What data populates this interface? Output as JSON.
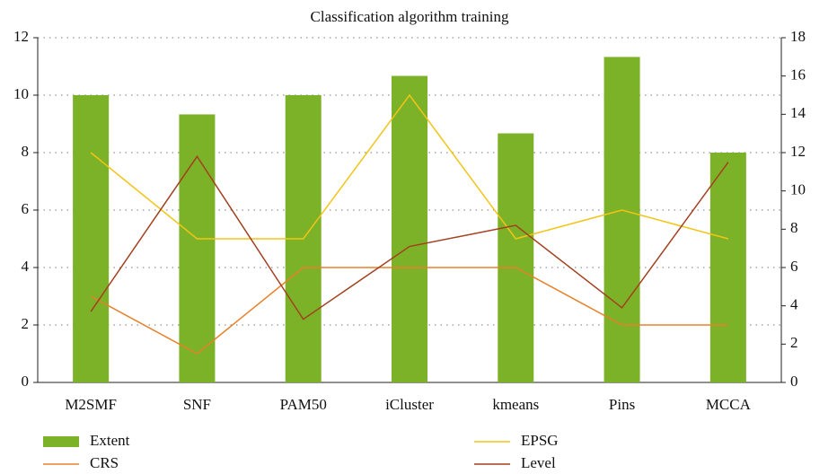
{
  "chart_data": {
    "type": "bar",
    "title": "Classification algorithm training",
    "categories": [
      "M2SMF",
      "SNF",
      "PAM50",
      "iCluster",
      "kmeans",
      "Pins",
      "MCCA"
    ],
    "series": [
      {
        "name": "Extent",
        "type": "bar",
        "color": "#7cb227",
        "values": [
          10,
          9.33,
          10,
          10.67,
          8.67,
          11.33,
          8
        ]
      },
      {
        "name": "CRS",
        "type": "line",
        "color": "#e8802a",
        "values": [
          3,
          1,
          4,
          4,
          4,
          2,
          2
        ]
      },
      {
        "name": "EPSG",
        "type": "line",
        "color": "#f3c417",
        "values": [
          8,
          5,
          5,
          10,
          5,
          6,
          5
        ]
      },
      {
        "name": "Level",
        "type": "line",
        "color": "#a3401f",
        "axis": "y2",
        "values": [
          3.7,
          11.8,
          3.3,
          7.1,
          8.2,
          3.9,
          11.5
        ]
      }
    ],
    "ylim": [
      0,
      12
    ],
    "yticks": [
      0,
      2,
      4,
      6,
      8,
      10,
      12
    ],
    "y2lim": [
      0,
      18
    ],
    "y2ticks": [
      0,
      2,
      4,
      6,
      8,
      10,
      12,
      14,
      16,
      18
    ],
    "grid": true,
    "legend": "bottom"
  }
}
